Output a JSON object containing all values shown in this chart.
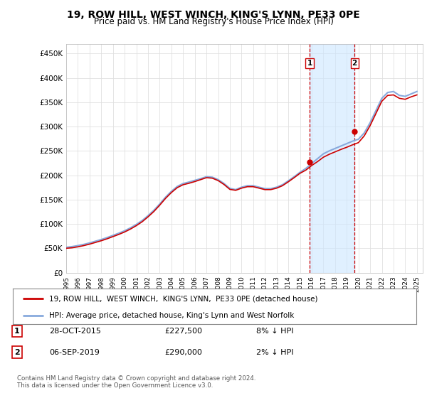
{
  "title": "19, ROW HILL, WEST WINCH, KING'S LYNN, PE33 0PE",
  "subtitle": "Price paid vs. HM Land Registry's House Price Index (HPI)",
  "title_fontsize": 10,
  "subtitle_fontsize": 8.5,
  "yticks": [
    0,
    50000,
    100000,
    150000,
    200000,
    250000,
    300000,
    350000,
    400000,
    450000
  ],
  "ytick_labels": [
    "£0",
    "£50K",
    "£100K",
    "£150K",
    "£200K",
    "£250K",
    "£300K",
    "£350K",
    "£400K",
    "£450K"
  ],
  "sale1_date": 2015.83,
  "sale1_price": 227500,
  "sale1_label": "1",
  "sale2_date": 2019.67,
  "sale2_price": 290000,
  "sale2_label": "2",
  "shade_color": "#cce6ff",
  "sale_line_color": "#cc0000",
  "hpi_line_color": "#88aadd",
  "vline_color": "#cc0000",
  "dot_color": "#cc0000",
  "background_color": "#ffffff",
  "grid_color": "#e0e0e0",
  "legend_label1": "19, ROW HILL,  WEST WINCH,  KING'S LYNN,  PE33 0PE (detached house)",
  "legend_label2": "HPI: Average price, detached house, King's Lynn and West Norfolk",
  "annotation1_date": "28-OCT-2015",
  "annotation1_price": "£227,500",
  "annotation1_hpi": "8% ↓ HPI",
  "annotation2_date": "06-SEP-2019",
  "annotation2_price": "£290,000",
  "annotation2_hpi": "2% ↓ HPI",
  "footer": "Contains HM Land Registry data © Crown copyright and database right 2024.\nThis data is licensed under the Open Government Licence v3.0.",
  "xmin": 1995,
  "xmax": 2025.5,
  "ymin": 0,
  "ymax": 470000,
  "hpi_years": [
    1995,
    1995.5,
    1996,
    1996.5,
    1997,
    1997.5,
    1998,
    1998.5,
    1999,
    1999.5,
    2000,
    2000.5,
    2001,
    2001.5,
    2002,
    2002.5,
    2003,
    2003.5,
    2004,
    2004.5,
    2005,
    2005.5,
    2006,
    2006.5,
    2007,
    2007.5,
    2008,
    2008.5,
    2009,
    2009.5,
    2010,
    2010.5,
    2011,
    2011.5,
    2012,
    2012.5,
    2013,
    2013.5,
    2014,
    2014.5,
    2015,
    2015.5,
    2016,
    2016.5,
    2017,
    2017.5,
    2018,
    2018.5,
    2019,
    2019.5,
    2020,
    2020.5,
    2021,
    2021.5,
    2022,
    2022.5,
    2023,
    2023.5,
    2024,
    2024.5,
    2025
  ],
  "hpi_values": [
    52000,
    53500,
    55500,
    58000,
    61000,
    64500,
    68000,
    72000,
    76500,
    81000,
    86000,
    92000,
    99000,
    107000,
    117000,
    128000,
    141000,
    155000,
    167000,
    177000,
    183000,
    186000,
    189500,
    193000,
    197000,
    196000,
    191000,
    183000,
    173000,
    170500,
    175500,
    178500,
    178500,
    175500,
    172500,
    172500,
    175500,
    180500,
    188500,
    197000,
    206000,
    214000,
    224000,
    234000,
    244000,
    250000,
    255000,
    260000,
    265000,
    270000,
    274000,
    287000,
    308000,
    333000,
    358000,
    370000,
    372000,
    364000,
    362000,
    367000,
    372000
  ],
  "prop_years": [
    1995,
    1995.5,
    1996,
    1996.5,
    1997,
    1997.5,
    1998,
    1998.5,
    1999,
    1999.5,
    2000,
    2000.5,
    2001,
    2001.5,
    2002,
    2002.5,
    2003,
    2003.5,
    2004,
    2004.5,
    2005,
    2005.5,
    2006,
    2006.5,
    2007,
    2007.5,
    2008,
    2008.5,
    2009,
    2009.5,
    2010,
    2010.5,
    2011,
    2011.5,
    2012,
    2012.5,
    2013,
    2013.5,
    2014,
    2014.5,
    2015,
    2015.5,
    2016,
    2016.5,
    2017,
    2017.5,
    2018,
    2018.5,
    2019,
    2019.5,
    2020,
    2020.5,
    2021,
    2021.5,
    2022,
    2022.5,
    2023,
    2023.5,
    2024,
    2024.5,
    2025
  ],
  "prop_values": [
    50000,
    51000,
    53000,
    55500,
    58500,
    62000,
    65500,
    69500,
    74000,
    78500,
    83500,
    89500,
    96500,
    104500,
    114500,
    125500,
    138500,
    152500,
    164500,
    174500,
    180500,
    183500,
    187000,
    191000,
    195000,
    194000,
    189000,
    181000,
    171000,
    169000,
    173500,
    176500,
    176500,
    173500,
    170500,
    170500,
    173500,
    178500,
    186500,
    195000,
    204000,
    210500,
    220000,
    228000,
    237000,
    243000,
    248000,
    253000,
    257500,
    262500,
    267000,
    281000,
    302000,
    327000,
    352000,
    364000,
    365000,
    358000,
    356000,
    361000,
    365000
  ]
}
